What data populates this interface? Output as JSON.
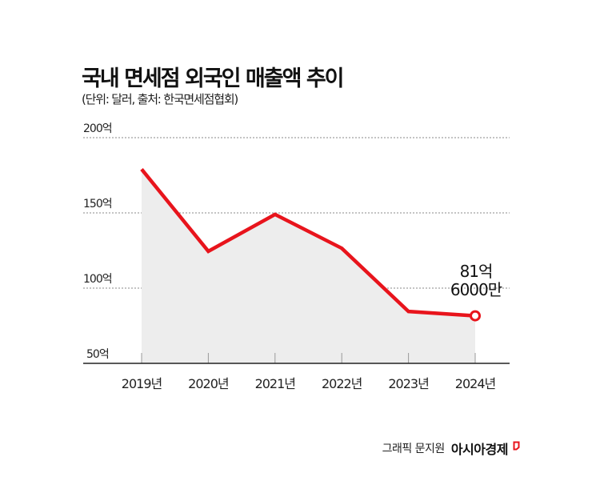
{
  "header": {
    "title": "국내 면세점 외국인 매출액 추이",
    "subtitle": "(단위: 달러, 출처: 한국면세점협회)"
  },
  "chart_data": {
    "type": "area",
    "title": "국내 면세점 외국인 매출액 추이",
    "subtitle": "(단위: 달러, 출처: 한국면세점협회)",
    "xlabel": "",
    "ylabel": "",
    "unit": "억 달러",
    "categories": [
      "2019년",
      "2020년",
      "2021년",
      "2022년",
      "2023년",
      "2024년"
    ],
    "series": [
      {
        "name": "외국인 매출액",
        "values": [
          179,
          124.5,
          149,
          126.5,
          84.5,
          81.6
        ],
        "color": "#e8141c"
      }
    ],
    "ylim": [
      50,
      200
    ],
    "yticks": [
      {
        "value": 200,
        "label": "200억"
      },
      {
        "value": 150,
        "label": "150억"
      },
      {
        "value": 100,
        "label": "100억"
      },
      {
        "value": 50,
        "label": "50억"
      }
    ],
    "grid": true,
    "grid_style": "dotted",
    "fill_color": "#ededed",
    "annotations": [
      {
        "x": "2024년",
        "line1": "81억",
        "line2": "6000만",
        "marker": "hollow-circle"
      }
    ],
    "legend": null
  },
  "callout": {
    "line1": "81억",
    "line2": "6000만"
  },
  "footer": {
    "credit": "그래픽 문지원",
    "brand": "아시아경제",
    "brand_mark_color": "#e8141c"
  }
}
